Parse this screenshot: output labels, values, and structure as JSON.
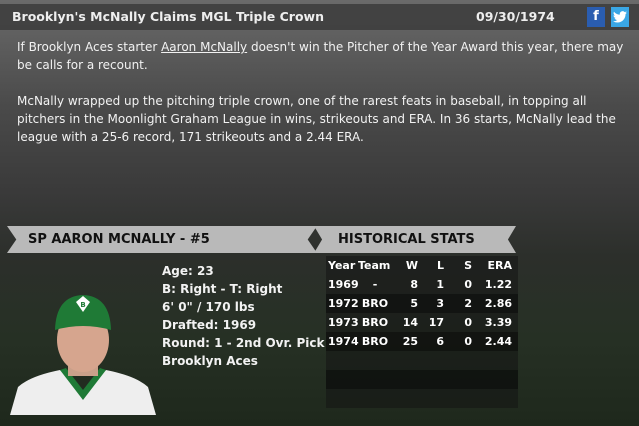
{
  "header": {
    "headline": "Brooklyn's McNally Claims MGL Triple Crown",
    "date": "09/30/1974",
    "facebook_label": "f",
    "twitter_label": "t"
  },
  "article": {
    "p1_before": "If Brooklyn Aces starter ",
    "p1_link": "Aaron McNally",
    "p1_after": " doesn't win the Pitcher of the Year Award this year, there may be calls for a recount.",
    "p2": "McNally wrapped up the pitching triple crown, one of the rarest feats in baseball, in topping all pitchers in the Moonlight Graham League in wins, strikeouts and ERA. In 36 starts, McNally lead the league with a 25-6 record, 171 strikeouts and a 2.44 ERA."
  },
  "player": {
    "banner": "SP AARON MCNALLY - #5",
    "age": "Age: 23",
    "bats_throws": "B: Right - T: Right",
    "size": "6' 0\" / 170 lbs",
    "drafted": "Drafted: 1969",
    "round": "Round: 1 - 2nd Ovr. Pick",
    "team": "Brooklyn Aces",
    "cap_letter": "B"
  },
  "stats": {
    "banner": "HISTORICAL STATS",
    "columns": [
      "Year",
      "Team",
      "W",
      "L",
      "S",
      "ERA"
    ],
    "rows": [
      [
        "1969",
        "-",
        "8",
        "1",
        "0",
        "1.22"
      ],
      [
        "1972",
        "BRO",
        "5",
        "3",
        "2",
        "2.86"
      ],
      [
        "1973",
        "BRO",
        "14",
        "17",
        "0",
        "3.39"
      ],
      [
        "1974",
        "BRO",
        "25",
        "6",
        "0",
        "2.44"
      ]
    ]
  },
  "colors": {
    "facebook": "#2a5db0",
    "twitter": "#3aa7e6",
    "banner": "#b9b9b9",
    "team_green": "#1f7a36"
  }
}
